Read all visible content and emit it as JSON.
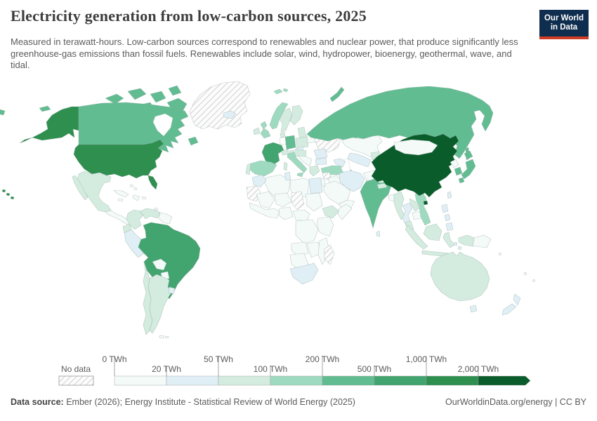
{
  "header": {
    "title": "Electricity generation from low-carbon sources, 2025",
    "subtitle": "Measured in terawatt-hours. Low-carbon sources correspond to renewables and nuclear power, that produce significantly less greenhouse-gas emissions than fossil fuels. Renewables include solar, wind, hydropower, bioenergy, geothermal, wave, and tidal.",
    "logo": {
      "line1": "Our World",
      "line2": "in Data",
      "bg_color": "#0f2d4e",
      "accent_color": "#d13c27"
    }
  },
  "legend": {
    "no_data_label": "No data",
    "tick_labels": [
      "0 TWh",
      "20 TWh",
      "50 TWh",
      "100 TWh",
      "200 TWh",
      "500 TWh",
      "1,000 TWh",
      "2,000 TWh"
    ]
  },
  "footer": {
    "source_label": "Data source:",
    "source_text": " Ember (2026); Energy Institute - Statistical Review of World Energy (2025)",
    "right_text": "OurWorldinData.org/energy | CC BY"
  },
  "chart_data": {
    "type": "choropleth",
    "title": "Electricity generation from low-carbon sources",
    "year": "2025",
    "unit": "TWh",
    "projection": "world",
    "legend_position": "bottom",
    "bins": [
      {
        "range": "0–20 TWh",
        "color": "#f3faf8"
      },
      {
        "range": "20–50 TWh",
        "color": "#e0eef5"
      },
      {
        "range": "50–100 TWh",
        "color": "#d4ecdf"
      },
      {
        "range": "100–200 TWh",
        "color": "#9edac0"
      },
      {
        "range": "200–500 TWh",
        "color": "#62bc92"
      },
      {
        "range": "500–1,000 TWh",
        "color": "#42a46f"
      },
      {
        "range": "1,000–2,000 TWh",
        "color": "#2e8f4f"
      },
      {
        "range": "over 2,000 TWh",
        "color": "#0a5c2a"
      }
    ],
    "no_data": [
      "Greenland",
      "Ukraine",
      "Syria",
      "Western Sahara",
      "Chad",
      "Madagascar"
    ],
    "country_bins": {
      "China": 7,
      "United States": 6,
      "Brazil": 5,
      "France": 5,
      "Canada": 4,
      "Russia": 4,
      "India": 4,
      "Japan": 4,
      "South Korea": 4,
      "Germany": 4,
      "Norway": 3,
      "United Kingdom": 3,
      "Spain": 3,
      "Turkey": 3,
      "Vietnam": 3,
      "Italy": 3,
      "Svalbard": 3,
      "Mexico": 2,
      "Argentina": 2,
      "Chile": 2,
      "Colombia": 2,
      "Venezuela": 2,
      "Ecuador": 2,
      "Sweden": 2,
      "Finland": 2,
      "Poland": 2,
      "Ireland": 2,
      "Portugal": 2,
      "Greece": 2,
      "Denmark": 2,
      "Switzerland": 2,
      "Austria": 2,
      "Baltic states": 2,
      "Ethiopia": 2,
      "Pakistan": 2,
      "Myanmar": 2,
      "Laos": 2,
      "Nepal": 2,
      "Kyrgyzstan": 2,
      "Indonesia": 2,
      "Malaysia": 2,
      "Australia": 2,
      "Corsica": 2,
      "Peru": 1,
      "Uruguay": 1,
      "Iceland": 1,
      "Iran": 1,
      "Egypt": 1,
      "South Africa": 1,
      "Thailand": 1,
      "New Zealand": 1,
      "Philippines": 1,
      "Romania": 1,
      "Bulgaria": 1,
      "Morocco": 1,
      "Tunisia": 1,
      "Czechia": 1,
      "Uzbekistan": 1,
      "Georgia": 1,
      "Taiwan": 1,
      "Tasmania": 1,
      "Maluku Islands": 1,
      "Sri Lanka": 1,
      "Mongolia": 0,
      "Kazakhstan": 0,
      "Saudi Arabia": 0,
      "Iraq": 0,
      "Afghanistan": 0,
      "Yemen": 0,
      "Jordan": 0,
      "Algeria": 0,
      "Libya": 0,
      "Mali": 0,
      "Niger": 0,
      "Sudan": 0,
      "Nigeria": 0,
      "West Africa": 0,
      "Cameroon": 0,
      "Somalia": 0,
      "Kenya": 0,
      "Democratic Republic of Congo": 0,
      "Angola": 0,
      "Zambia": 0,
      "Mozambique": 0,
      "Namibia": 0,
      "Belarus": 0,
      "Hungary": 0,
      "Balkans": 0,
      "Moldova": 0,
      "Bolivia": 0,
      "Paraguay": 0,
      "Guyana": 0,
      "Cuba": 0,
      "Hispaniola": 0,
      "Jamaica": 0,
      "Puerto Rico": 0,
      "Bahamas": 0,
      "Trinidad and Tobago": 0,
      "Central America": 0,
      "North Korea": 0,
      "Cambodia": 0,
      "Bangladesh": 0,
      "Papua New Guinea": 0,
      "Cyprus": 0,
      "Turkmenistan": 0,
      "Lesser Sunda Islands": 0,
      "Oman": 0
    }
  }
}
